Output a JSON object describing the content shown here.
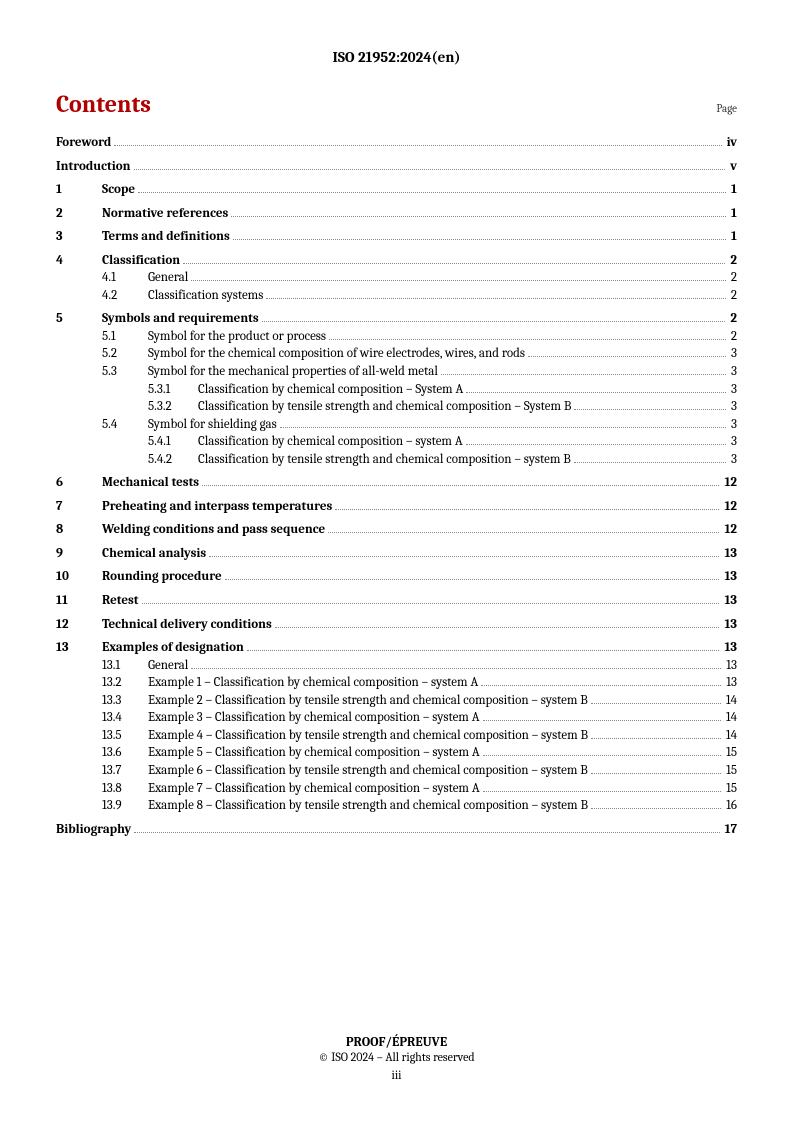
{
  "header": {
    "doc_id": "ISO 21952:2024(en)"
  },
  "contents": {
    "title": "Contents",
    "page_label": "Page"
  },
  "toc": {
    "foreword": {
      "title": "Foreword",
      "page": "iv"
    },
    "introduction": {
      "title": "Introduction",
      "page": "v"
    },
    "s1": {
      "num": "1",
      "title": "Scope",
      "page": "1"
    },
    "s2": {
      "num": "2",
      "title": "Normative references",
      "page": "1"
    },
    "s3": {
      "num": "3",
      "title": "Terms and definitions",
      "page": "1"
    },
    "s4": {
      "num": "4",
      "title": "Classification",
      "page": "2",
      "c1": {
        "num": "4.1",
        "title": "General",
        "page": "2"
      },
      "c2": {
        "num": "4.2",
        "title": "Classification systems",
        "page": "2"
      }
    },
    "s5": {
      "num": "5",
      "title": "Symbols and requirements",
      "page": "2",
      "c1": {
        "num": "5.1",
        "title": "Symbol for the product or process",
        "page": "2"
      },
      "c2": {
        "num": "5.2",
        "title": "Symbol for the chemical composition of wire electrodes, wires, and rods",
        "page": "3"
      },
      "c3": {
        "num": "5.3",
        "title": "Symbol for the mechanical properties of all-weld metal",
        "page": "3",
        "d1": {
          "num": "5.3.1",
          "title": "Classification by chemical composition – System A",
          "page": "3"
        },
        "d2": {
          "num": "5.3.2",
          "title": "Classification by tensile strength and chemical composition – System B",
          "page": "3"
        }
      },
      "c4": {
        "num": "5.4",
        "title": "Symbol for shielding gas",
        "page": "3",
        "d1": {
          "num": "5.4.1",
          "title": "Classification by chemical composition – system A",
          "page": "3"
        },
        "d2": {
          "num": "5.4.2",
          "title": "Classification by tensile strength and chemical composition – system B",
          "page": "3"
        }
      }
    },
    "s6": {
      "num": "6",
      "title": "Mechanical tests",
      "page": "12"
    },
    "s7": {
      "num": "7",
      "title": "Preheating and interpass temperatures",
      "page": "12"
    },
    "s8": {
      "num": "8",
      "title": "Welding conditions and pass sequence",
      "page": "12"
    },
    "s9": {
      "num": "9",
      "title": "Chemical analysis",
      "page": "13"
    },
    "s10": {
      "num": "10",
      "title": "Rounding procedure",
      "page": "13"
    },
    "s11": {
      "num": "11",
      "title": "Retest",
      "page": "13"
    },
    "s12": {
      "num": "12",
      "title": "Technical delivery conditions",
      "page": "13"
    },
    "s13": {
      "num": "13",
      "title": "Examples of designation",
      "page": "13",
      "c1": {
        "num": "13.1",
        "title": "General",
        "page": "13"
      },
      "c2": {
        "num": "13.2",
        "title": "Example 1 – Classification by chemical composition – system A",
        "page": "13"
      },
      "c3": {
        "num": "13.3",
        "title": "Example 2 – Classification by tensile strength and chemical composition – system B",
        "page": "14"
      },
      "c4": {
        "num": "13.4",
        "title": "Example 3 – Classification by chemical composition – system A",
        "page": "14"
      },
      "c5": {
        "num": "13.5",
        "title": "Example 4 – Classification by tensile strength and chemical composition – system B",
        "page": "14"
      },
      "c6": {
        "num": "13.6",
        "title": "Example 5 – Classification by chemical composition – system A",
        "page": "15"
      },
      "c7": {
        "num": "13.7",
        "title": "Example 6 – Classification by tensile strength and chemical composition – system B",
        "page": "15"
      },
      "c8": {
        "num": "13.8",
        "title": "Example 7 – Classification by chemical composition – system A",
        "page": "15"
      },
      "c9": {
        "num": "13.9",
        "title": "Example 8 – Classification by tensile strength and chemical composition – system B",
        "page": "16"
      }
    },
    "bibliography": {
      "title": "Bibliography",
      "page": "17"
    }
  },
  "footer": {
    "proof": "PROOF/ÉPREUVE",
    "copyright": "© ISO 2024 – All rights reserved",
    "page_roman": "iii"
  }
}
